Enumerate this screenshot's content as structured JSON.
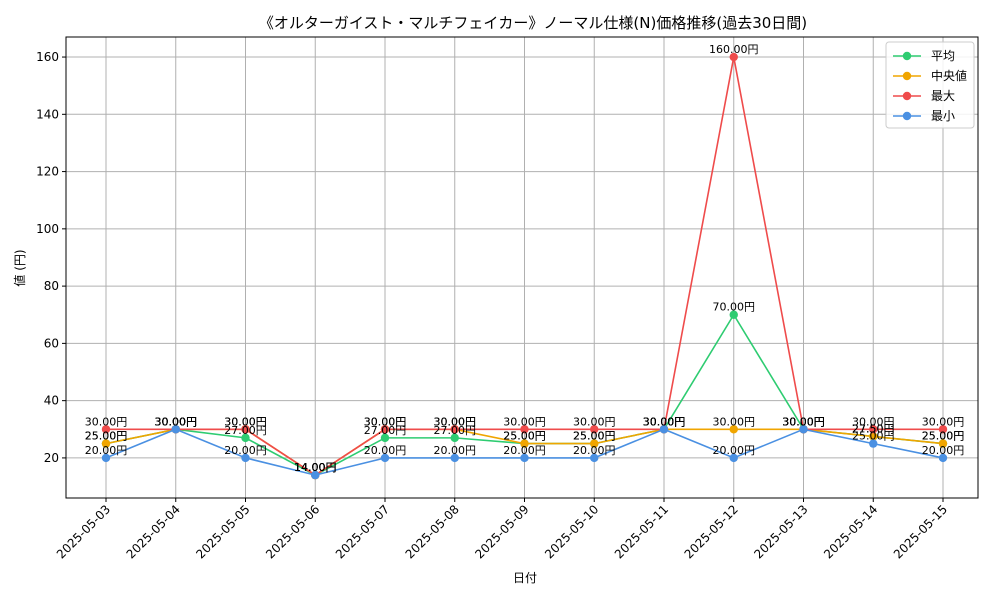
{
  "chart_data": {
    "type": "line",
    "title": "《オルターガイスト・マルチフェイカー》ノーマル仕様(N)価格推移(過去30日間)",
    "xlabel": "日付",
    "ylabel": "値 (円)",
    "ylim": [
      6,
      167
    ],
    "yticks": [
      20,
      40,
      60,
      80,
      100,
      120,
      140,
      160
    ],
    "grid": true,
    "legend_position": "top-right",
    "label_suffix": "円",
    "categories": [
      "2025-05-03",
      "2025-05-04",
      "2025-05-05",
      "2025-05-06",
      "2025-05-07",
      "2025-05-08",
      "2025-05-09",
      "2025-05-10",
      "2025-05-11",
      "2025-05-12",
      "2025-05-13",
      "2025-05-14",
      "2025-05-15"
    ],
    "series": [
      {
        "name": "平均",
        "color": "#2ecc71",
        "values": [
          25,
          30,
          27,
          14,
          27,
          27,
          25,
          25,
          30,
          70,
          30,
          27.5,
          25
        ]
      },
      {
        "name": " 中央値",
        "color": "#f0a500",
        "values": [
          25,
          30,
          30,
          14,
          30,
          30,
          25,
          25,
          30,
          30,
          30,
          27.5,
          25
        ]
      },
      {
        "name": "最大",
        "color": "#ef4b4b",
        "values": [
          30,
          30,
          30,
          14,
          30,
          30,
          30,
          30,
          30,
          160,
          30,
          30,
          30
        ]
      },
      {
        "name": "最小",
        "color": "#4a90e2",
        "values": [
          20,
          30,
          20,
          14,
          20,
          20,
          20,
          20,
          30,
          20,
          30,
          25,
          20
        ]
      }
    ]
  }
}
